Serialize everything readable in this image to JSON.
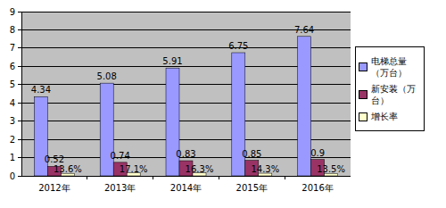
{
  "chart_data": {
    "type": "bar",
    "categories": [
      "2012年",
      "2013年",
      "2014年",
      "2015年",
      "2016年"
    ],
    "series": [
      {
        "name": "电梯总量（万台）",
        "color": "#9999ff",
        "values": [
          4.34,
          5.08,
          5.91,
          6.75,
          7.64
        ]
      },
      {
        "name": "新安装（万台）",
        "color": "#993366",
        "values": [
          0.52,
          0.74,
          0.83,
          0.85,
          0.9
        ]
      },
      {
        "name": "增长率",
        "color": "#ffffcc",
        "values": [
          0.136,
          0.171,
          0.163,
          0.143,
          0.135
        ],
        "value_labels": [
          "13.6%",
          "17.1%",
          "16.3%",
          "14.3%",
          "13.5%"
        ]
      }
    ],
    "ylim": [
      0,
      9
    ],
    "yticks": [
      0,
      1,
      2,
      3,
      4,
      5,
      6,
      7,
      8,
      9
    ],
    "grid": true,
    "legend": "right",
    "data_labels": true
  }
}
